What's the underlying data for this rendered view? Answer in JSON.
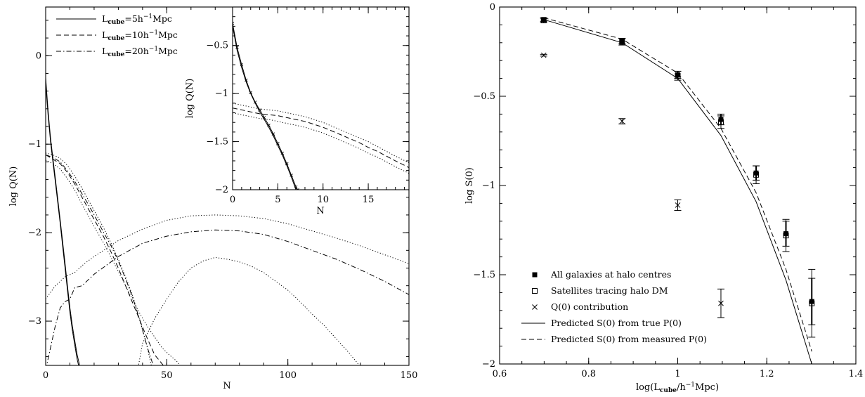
{
  "chart_data": [
    {
      "type": "line",
      "xlabel": "N",
      "ylabel": "log Q(N)",
      "xlim": [
        0,
        150
      ],
      "ylim": [
        -3.5,
        0.55
      ],
      "xticks": [
        0,
        50,
        100,
        150
      ],
      "yticks": [
        0,
        -1,
        -2,
        -3
      ],
      "legend_position": "top-left",
      "legend": [
        {
          "name": "L_cube=5h^-1Mpc",
          "base": "L",
          "sub": "cube",
          "mid": "=5h",
          "sup": "−1",
          "tail": "Mpc",
          "style": "solid"
        },
        {
          "name": "L_cube=10h^-1Mpc",
          "base": "L",
          "sub": "cube",
          "mid": "=10h",
          "sup": "−1",
          "tail": "Mpc",
          "style": "dashed"
        },
        {
          "name": "L_cube=20h^-1Mpc",
          "base": "L",
          "sub": "cube",
          "mid": "=20h",
          "sup": "−1",
          "tail": "Mpc",
          "style": "dashdot"
        }
      ],
      "series": [
        {
          "style": "solid",
          "x": [
            0,
            1,
            2,
            3,
            4,
            5,
            6,
            7,
            8,
            9,
            10,
            11,
            12,
            13,
            14,
            15
          ],
          "y": [
            -0.25,
            -0.62,
            -0.93,
            -1.16,
            -1.39,
            -1.62,
            -1.86,
            -2.1,
            -2.35,
            -2.6,
            -2.85,
            -3.05,
            -3.22,
            -3.38,
            -3.5,
            -3.62
          ]
        },
        {
          "style": "solid",
          "x": [
            0,
            1,
            2,
            3,
            4,
            5,
            6,
            7,
            8,
            9,
            10,
            11,
            12,
            13,
            14
          ],
          "y": [
            -0.3,
            -0.67,
            -0.97,
            -1.2,
            -1.43,
            -1.66,
            -1.9,
            -2.15,
            -2.4,
            -2.65,
            -2.9,
            -3.1,
            -3.27,
            -3.43,
            -3.55
          ]
        },
        {
          "style": "dashed",
          "x": [
            0,
            3,
            6,
            9,
            12,
            15,
            18,
            21,
            24,
            27,
            30,
            33,
            36,
            39,
            42,
            45,
            48,
            50
          ],
          "y": [
            -1.12,
            -1.17,
            -1.22,
            -1.32,
            -1.45,
            -1.6,
            -1.75,
            -1.9,
            -2.05,
            -2.22,
            -2.4,
            -2.6,
            -2.8,
            -3.0,
            -3.2,
            -3.38,
            -3.48,
            -3.55
          ]
        },
        {
          "style": "dotted",
          "x": [
            0,
            3,
            6,
            9,
            12,
            15,
            18,
            21,
            24,
            27,
            30,
            33,
            36,
            39,
            42,
            44
          ],
          "y": [
            -1.1,
            -1.12,
            -1.16,
            -1.24,
            -1.36,
            -1.5,
            -1.65,
            -1.8,
            -1.95,
            -2.12,
            -2.3,
            -2.5,
            -2.72,
            -3.0,
            -3.3,
            -3.55
          ]
        },
        {
          "style": "dotted",
          "x": [
            0,
            3,
            6,
            9,
            12,
            15,
            18,
            21,
            24,
            27,
            30,
            33,
            36,
            39,
            42,
            45,
            48,
            51,
            54,
            57
          ],
          "y": [
            -1.18,
            -1.22,
            -1.28,
            -1.39,
            -1.52,
            -1.68,
            -1.83,
            -1.98,
            -2.12,
            -2.28,
            -2.44,
            -2.6,
            -2.76,
            -2.92,
            -3.06,
            -3.18,
            -3.3,
            -3.38,
            -3.45,
            -3.55
          ]
        },
        {
          "style": "dashdot",
          "x": [
            0,
            3,
            6,
            9,
            12,
            15,
            18,
            21,
            24,
            27,
            30,
            33,
            36,
            39,
            42,
            45
          ],
          "y": [
            -1.12,
            -1.15,
            -1.2,
            -1.3,
            -1.42,
            -1.56,
            -1.7,
            -1.85,
            -2.0,
            -2.15,
            -2.32,
            -2.52,
            -2.74,
            -3.0,
            -3.3,
            -3.55
          ]
        },
        {
          "style": "dashdot",
          "x": [
            0,
            2,
            4,
            6,
            8,
            10,
            12,
            15,
            20,
            25,
            30,
            40,
            50,
            60,
            70,
            80,
            90,
            100,
            110,
            120,
            130,
            140,
            150
          ],
          "y": [
            -3.55,
            -3.3,
            -3.05,
            -2.85,
            -2.78,
            -2.75,
            -2.62,
            -2.6,
            -2.47,
            -2.37,
            -2.27,
            -2.12,
            -2.04,
            -1.99,
            -1.97,
            -1.98,
            -2.02,
            -2.1,
            -2.2,
            -2.3,
            -2.42,
            -2.55,
            -2.7
          ]
        },
        {
          "style": "dotted",
          "x": [
            0,
            4,
            8,
            12,
            16,
            20,
            25,
            30,
            40,
            50,
            60,
            70,
            80,
            90,
            100,
            110,
            120,
            130,
            140,
            150
          ],
          "y": [
            -2.75,
            -2.6,
            -2.5,
            -2.45,
            -2.35,
            -2.27,
            -2.18,
            -2.09,
            -1.96,
            -1.86,
            -1.81,
            -1.8,
            -1.81,
            -1.84,
            -1.9,
            -1.98,
            -2.06,
            -2.15,
            -2.25,
            -2.35
          ]
        },
        {
          "style": "dotted",
          "x": [
            38,
            40,
            45,
            50,
            55,
            60,
            65,
            70,
            75,
            80,
            85,
            90,
            95,
            100,
            105,
            110,
            115,
            120,
            125,
            128,
            131
          ],
          "y": [
            -3.55,
            -3.25,
            -2.97,
            -2.75,
            -2.55,
            -2.4,
            -2.32,
            -2.28,
            -2.3,
            -2.33,
            -2.38,
            -2.45,
            -2.55,
            -2.65,
            -2.78,
            -2.92,
            -3.05,
            -3.2,
            -3.35,
            -3.45,
            -3.55
          ]
        }
      ],
      "inset": {
        "type": "line",
        "xlabel": "N",
        "ylabel": "log Q(N)",
        "xlim": [
          0,
          19.5
        ],
        "ylim": [
          -2,
          -0.1
        ],
        "xticks": [
          0,
          5,
          10,
          15
        ],
        "yticks": [
          -0.5,
          -1,
          -1.5,
          -2
        ],
        "series": [
          {
            "style": "solid",
            "x": [
              0,
              0.5,
              1,
              1.5,
              2,
              2.5,
              3,
              3.5,
              4,
              4.5,
              5,
              5.5,
              6,
              6.5,
              7,
              7.2
            ],
            "y": [
              -0.27,
              -0.52,
              -0.7,
              -0.86,
              -0.99,
              -1.09,
              -1.17,
              -1.25,
              -1.33,
              -1.42,
              -1.52,
              -1.62,
              -1.73,
              -1.85,
              -1.97,
              -2.0
            ]
          },
          {
            "style": "solid",
            "x": [
              0,
              0.5,
              1,
              1.5,
              2,
              2.5,
              3,
              3.5,
              4,
              4.5,
              5,
              5.5,
              6,
              6.5,
              7
            ],
            "y": [
              -0.3,
              -0.55,
              -0.73,
              -0.88,
              -1.0,
              -1.1,
              -1.19,
              -1.27,
              -1.35,
              -1.44,
              -1.54,
              -1.64,
              -1.75,
              -1.87,
              -2.0
            ]
          },
          {
            "style": "dotted",
            "x": [
              0,
              1,
              2,
              3,
              4,
              5,
              6,
              7,
              8,
              9,
              10,
              11,
              12,
              13,
              14,
              15,
              16,
              17,
              18,
              19.5
            ],
            "y": [
              -1.1,
              -1.12,
              -1.14,
              -1.16,
              -1.17,
              -1.18,
              -1.2,
              -1.22,
              -1.24,
              -1.27,
              -1.3,
              -1.34,
              -1.38,
              -1.42,
              -1.46,
              -1.5,
              -1.55,
              -1.6,
              -1.65,
              -1.72
            ]
          },
          {
            "style": "dashed",
            "x": [
              0,
              1,
              2,
              3,
              4,
              5,
              6,
              7,
              8,
              9,
              10,
              11,
              12,
              13,
              14,
              15,
              16,
              17,
              18,
              19.5
            ],
            "y": [
              -1.15,
              -1.17,
              -1.19,
              -1.21,
              -1.22,
              -1.23,
              -1.25,
              -1.27,
              -1.29,
              -1.32,
              -1.35,
              -1.39,
              -1.43,
              -1.47,
              -1.51,
              -1.56,
              -1.6,
              -1.65,
              -1.7,
              -1.77
            ]
          },
          {
            "style": "dotted",
            "x": [
              0,
              1,
              2,
              3,
              4,
              5,
              6,
              7,
              8,
              9,
              10,
              11,
              12,
              13,
              14,
              15,
              16,
              17,
              18,
              19.5
            ],
            "y": [
              -1.2,
              -1.22,
              -1.24,
              -1.26,
              -1.27,
              -1.29,
              -1.31,
              -1.33,
              -1.35,
              -1.38,
              -1.41,
              -1.45,
              -1.49,
              -1.53,
              -1.57,
              -1.62,
              -1.66,
              -1.71,
              -1.76,
              -1.83
            ]
          }
        ]
      }
    },
    {
      "type": "scatter",
      "xlabel": "log(L_cube/h^-1Mpc)",
      "xlabel_parts": {
        "pre": "log(L",
        "sub": "cube",
        "mid": "/h",
        "sup": "−1",
        "tail": "Mpc)"
      },
      "ylabel": "log S(0)",
      "xlim": [
        0.6,
        1.4
      ],
      "ylim": [
        -2,
        0
      ],
      "xticks": [
        0.6,
        0.8,
        1,
        1.2,
        1.4
      ],
      "yticks": [
        0,
        -0.5,
        -1,
        -1.5,
        -2
      ],
      "legend_position": "bottom-left",
      "legend": [
        {
          "name": "All galaxies at halo centres",
          "marker": "filled-square"
        },
        {
          "name": "Satellites tracing halo DM",
          "marker": "open-square"
        },
        {
          "name": "Q(0) contribution",
          "marker": "cross"
        },
        {
          "name": "Predicted S(0) from true P(0)",
          "style": "solid"
        },
        {
          "name": "Predicted S(0) from measured P(0)",
          "style": "dashed"
        }
      ],
      "series": [
        {
          "name": "All galaxies at halo centres",
          "marker": "filled-square",
          "x": [
            0.699,
            0.875,
            1.0,
            1.097,
            1.176,
            1.243,
            1.301
          ],
          "y": [
            -0.07,
            -0.19,
            -0.38,
            -0.63,
            -0.93,
            -1.27,
            -1.65
          ],
          "err": [
            0.01,
            0.015,
            0.02,
            0.03,
            0.04,
            0.07,
            0.13
          ]
        },
        {
          "name": "Satellites tracing halo DM",
          "marker": "open-square",
          "x": [
            0.699,
            0.875,
            1.0,
            1.097,
            1.176,
            1.243,
            1.301
          ],
          "y": [
            -0.075,
            -0.195,
            -0.385,
            -0.645,
            -0.94,
            -1.28,
            -1.66
          ],
          "err": [
            0.012,
            0.018,
            0.025,
            0.035,
            0.05,
            0.09,
            0.19
          ]
        },
        {
          "name": "Q(0) contribution",
          "marker": "cross",
          "x": [
            0.699,
            0.875,
            1.0,
            1.097
          ],
          "y": [
            -0.27,
            -0.64,
            -1.11,
            -1.66
          ],
          "err": [
            0.005,
            0.015,
            0.03,
            0.08
          ]
        },
        {
          "name": "Predicted S(0) from true P(0)",
          "style": "solid",
          "x": [
            0.699,
            0.875,
            1.0,
            1.097,
            1.176,
            1.243,
            1.301
          ],
          "y": [
            -0.07,
            -0.2,
            -0.4,
            -0.72,
            -1.09,
            -1.53,
            -2.0
          ]
        },
        {
          "name": "Predicted S(0) from measured P(0)",
          "style": "dashed",
          "x": [
            0.699,
            0.875,
            1.0,
            1.097,
            1.176,
            1.243,
            1.301
          ],
          "y": [
            -0.06,
            -0.18,
            -0.37,
            -0.68,
            -1.04,
            -1.47,
            -1.93
          ]
        }
      ]
    }
  ]
}
